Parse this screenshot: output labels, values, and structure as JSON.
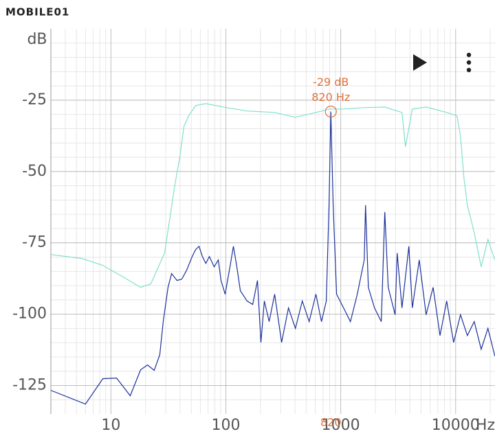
{
  "logo": "MOBILE01",
  "chart_data": {
    "type": "line",
    "y_label": "dB",
    "x_unit": "Hz",
    "log_x": true,
    "grid": true,
    "xlim": [
      3,
      22000
    ],
    "ylim": [
      -135,
      0
    ],
    "xticks": [
      10,
      100,
      1000,
      10000
    ],
    "yticks": [
      -25,
      -50,
      -75,
      -100,
      -125
    ],
    "annotation": {
      "text": [
        "-29 dB",
        "820 Hz"
      ],
      "x": 820,
      "y": -29,
      "x_label": "820",
      "color": "#e0703c"
    },
    "series": [
      {
        "color": "#7fe0cc",
        "x": [
          3,
          5.6,
          8.5,
          12.8,
          18.1,
          22.2,
          29.3,
          36,
          39.7,
          43.2,
          47.5,
          54.5,
          67,
          101,
          153,
          266,
          403,
          608,
          802,
          1057,
          1600,
          2416,
          3413,
          3656,
          4198,
          5534,
          8356,
          10280,
          11020,
          11800,
          12650,
          14520,
          16670,
          19100,
          21930
        ],
        "values": [
          -79.1,
          -80.5,
          -82.9,
          -87,
          -90.6,
          -89.4,
          -78.6,
          -54.6,
          -45,
          -34.1,
          -30.5,
          -26.9,
          -26.2,
          -27.6,
          -28.8,
          -29.3,
          -31,
          -29.3,
          -28.1,
          -28.1,
          -27.6,
          -27.4,
          -29.3,
          -41.3,
          -28.1,
          -27.4,
          -29.3,
          -30.5,
          -37.7,
          -52.2,
          -61.8,
          -71.4,
          -83.4,
          -73.8,
          -81
        ]
      },
      {
        "color": "#1a2f9a",
        "x": [
          3,
          6,
          8.5,
          11.2,
          14.7,
          18.1,
          20.8,
          23.8,
          26.6,
          28.5,
          31.4,
          33.7,
          37.6,
          41.4,
          45.6,
          50.9,
          54.5,
          58.4,
          62.5,
          67,
          71.8,
          79.1,
          85.9,
          90.8,
          98.6,
          108.6,
          116.4,
          124.7,
          133.7,
          153,
          171.4,
          188.5,
          201.9,
          216.3,
          238.3,
          266,
          305.5,
          350.8,
          403,
          462.4,
          530.9,
          608,
          679.2,
          748.2,
          790.7,
          820,
          859,
          920,
          1057,
          1213,
          1393,
          1600,
          1644,
          1738,
          1965,
          2254,
          2416,
          2588,
          2972,
          3097,
          3413,
          3917,
          4198,
          4819,
          5534,
          6368,
          7311,
          8356,
          9594,
          11020,
          12650,
          14520,
          16670,
          19100,
          21930
        ],
        "values": [
          -126.7,
          -131.5,
          -122.6,
          -122.4,
          -128.6,
          -119.5,
          -117.8,
          -119.7,
          -114.2,
          -102.6,
          -90.6,
          -85.8,
          -88.2,
          -87.7,
          -84.6,
          -79.8,
          -77.4,
          -76.2,
          -79.8,
          -82.2,
          -79.8,
          -83.4,
          -81,
          -88.2,
          -93,
          -83.4,
          -76.2,
          -83.4,
          -91.8,
          -95.4,
          -96.6,
          -88.2,
          -109.9,
          -95.4,
          -102.6,
          -93,
          -109.9,
          -97.8,
          -105,
          -95.4,
          -102.6,
          -93,
          -102.6,
          -95.4,
          -61.8,
          -29,
          -61.8,
          -93,
          -97.8,
          -102.6,
          -93,
          -81,
          -61.8,
          -90.6,
          -97.8,
          -102.6,
          -64.2,
          -90.6,
          -100.2,
          -78.6,
          -97.8,
          -76.2,
          -97.8,
          -81,
          -100.2,
          -90.6,
          -107.5,
          -95.4,
          -109.9,
          -100.2,
          -107.5,
          -102.6,
          -112.3,
          -105,
          -114.7
        ]
      }
    ]
  }
}
